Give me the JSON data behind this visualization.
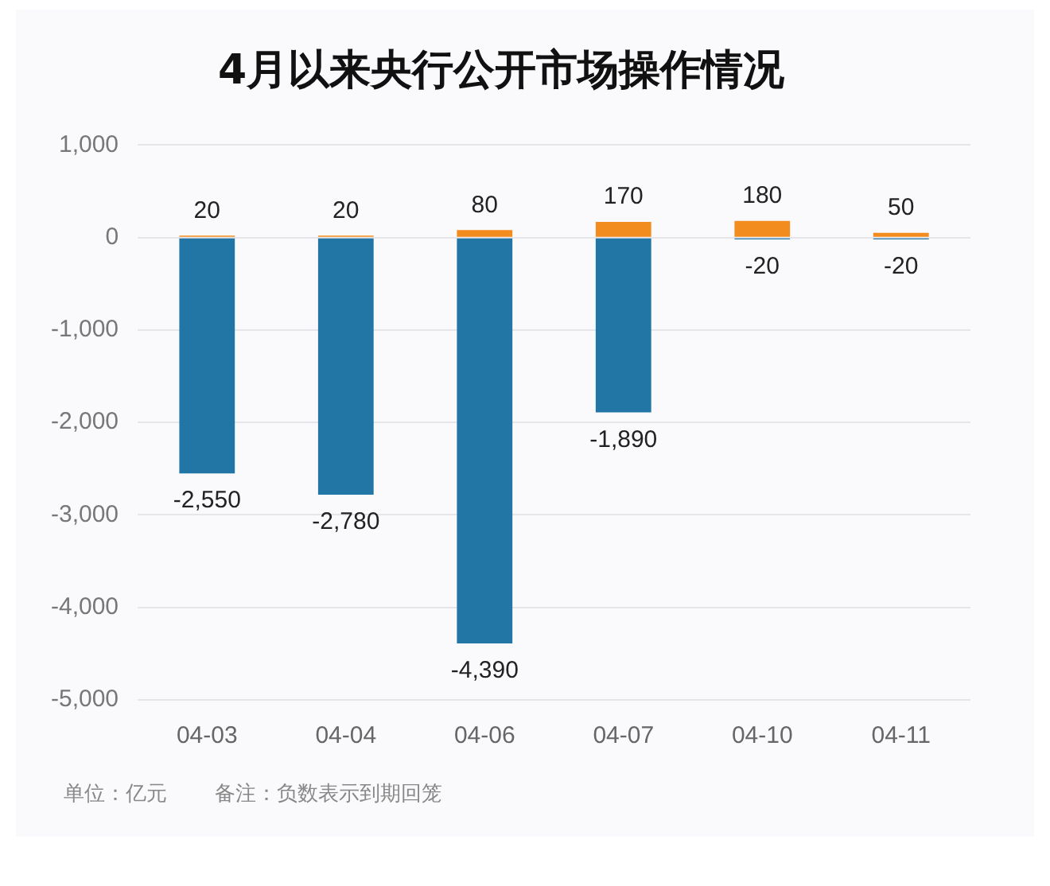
{
  "chart_data": {
    "type": "bar",
    "title": "4月以来央行公开市场操作情况",
    "categories": [
      "04-03",
      "04-04",
      "04-06",
      "04-07",
      "04-10",
      "04-11"
    ],
    "series": [
      {
        "color": "#2176a5",
        "values": [
          -2550,
          -2780,
          -4390,
          -1890,
          -20,
          -20
        ],
        "value_labels": [
          "-2,550",
          "-2,780",
          "-4,390",
          "-1,890",
          "-20",
          "-20"
        ]
      },
      {
        "color": "#f28c1e",
        "values": [
          20,
          20,
          80,
          170,
          180,
          50
        ],
        "value_labels": [
          "20",
          "20",
          "80",
          "170",
          "180",
          "50"
        ]
      }
    ],
    "stacked": true,
    "ylim": [
      -5000,
      1000
    ],
    "yticks": [
      {
        "value": -5000,
        "label": "-5,000"
      },
      {
        "value": -4000,
        "label": "-4,000"
      },
      {
        "value": -3000,
        "label": "-3,000"
      },
      {
        "value": -2000,
        "label": "-2,000"
      },
      {
        "value": -1000,
        "label": "-1,000"
      },
      0,
      {
        "value": 1000,
        "label": "1,000"
      }
    ],
    "grid": "y",
    "legend": false,
    "annotations": [
      "单位：亿元",
      "备注：负数表示到期回笼"
    ]
  }
}
